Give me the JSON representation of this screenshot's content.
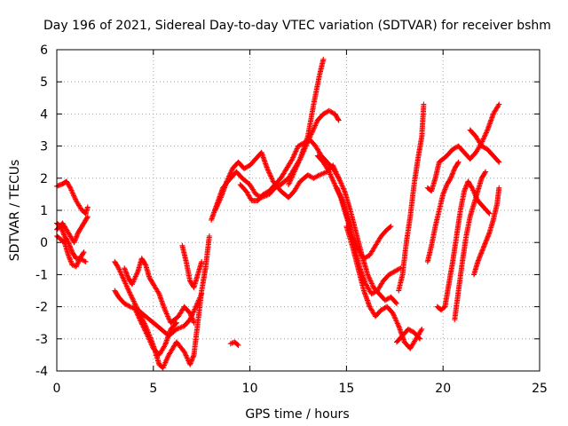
{
  "chart_data": {
    "type": "scatter",
    "title": "Day 196 of 2021, Sidereal Day-to-day VTEC variation (SDTVAR) for receiver bshm",
    "xlabel": "GPS time / hours",
    "ylabel": "SDTVAR / TECUs",
    "xlim": [
      0,
      25
    ],
    "ylim": [
      -4,
      6
    ],
    "xticks": [
      0,
      5,
      10,
      15,
      20,
      25
    ],
    "yticks": [
      -4,
      -3,
      -2,
      -1,
      0,
      1,
      2,
      3,
      4,
      5,
      6
    ],
    "grid": true,
    "marker": "plus",
    "color": "#ff0000",
    "segments": [
      [
        [
          0.0,
          1.75
        ],
        [
          0.3,
          1.82
        ],
        [
          0.5,
          1.9
        ],
        [
          0.7,
          1.7
        ],
        [
          1.0,
          1.3
        ],
        [
          1.3,
          1.0
        ],
        [
          1.5,
          0.9
        ],
        [
          1.6,
          1.1
        ]
      ],
      [
        [
          0.0,
          0.6
        ],
        [
          0.2,
          0.5
        ],
        [
          0.4,
          0.2
        ],
        [
          0.6,
          0.0
        ],
        [
          0.8,
          -0.3
        ],
        [
          1.0,
          -0.5
        ],
        [
          1.2,
          -0.5
        ],
        [
          1.5,
          -0.6
        ]
      ],
      [
        [
          0.0,
          0.2
        ],
        [
          0.2,
          0.1
        ],
        [
          0.4,
          0.0
        ],
        [
          0.6,
          -0.4
        ],
        [
          0.8,
          -0.7
        ],
        [
          1.0,
          -0.75
        ],
        [
          1.2,
          -0.5
        ],
        [
          1.4,
          -0.3
        ]
      ],
      [
        [
          0.0,
          0.4
        ],
        [
          0.3,
          0.6
        ],
        [
          0.6,
          0.3
        ],
        [
          0.9,
          0.0
        ],
        [
          1.1,
          0.3
        ],
        [
          1.3,
          0.5
        ],
        [
          1.5,
          0.7
        ],
        [
          1.6,
          0.8
        ]
      ],
      [
        [
          3.0,
          -0.6
        ],
        [
          3.2,
          -0.8
        ],
        [
          3.5,
          -1.2
        ],
        [
          3.8,
          -1.6
        ],
        [
          4.2,
          -2.1
        ],
        [
          4.6,
          -2.6
        ],
        [
          5.0,
          -3.2
        ],
        [
          5.3,
          -3.8
        ],
        [
          5.5,
          -3.9
        ],
        [
          5.8,
          -3.5
        ],
        [
          6.2,
          -3.1
        ],
        [
          6.6,
          -3.4
        ],
        [
          6.9,
          -3.8
        ],
        [
          7.1,
          -3.5
        ],
        [
          7.3,
          -2.5
        ],
        [
          7.5,
          -1.5
        ],
        [
          7.7,
          -0.8
        ],
        [
          7.9,
          0.2
        ]
      ],
      [
        [
          3.0,
          -1.5
        ],
        [
          3.2,
          -1.7
        ],
        [
          3.5,
          -1.9
        ],
        [
          3.8,
          -2.0
        ],
        [
          4.2,
          -2.1
        ],
        [
          4.6,
          -2.3
        ],
        [
          5.0,
          -2.5
        ],
        [
          5.4,
          -2.7
        ],
        [
          5.8,
          -2.9
        ],
        [
          6.2,
          -2.7
        ],
        [
          6.6,
          -2.6
        ],
        [
          6.9,
          -2.4
        ],
        [
          7.2,
          -2.0
        ],
        [
          7.5,
          -1.6
        ]
      ],
      [
        [
          3.5,
          -0.8
        ],
        [
          3.7,
          -1.1
        ],
        [
          3.9,
          -1.3
        ],
        [
          4.2,
          -0.9
        ],
        [
          4.4,
          -0.5
        ],
        [
          4.6,
          -0.7
        ],
        [
          4.8,
          -1.1
        ],
        [
          5.0,
          -1.3
        ],
        [
          5.3,
          -1.6
        ],
        [
          5.6,
          -2.1
        ],
        [
          5.9,
          -2.5
        ],
        [
          6.3,
          -2.3
        ],
        [
          6.6,
          -2.0
        ],
        [
          6.9,
          -2.2
        ],
        [
          7.1,
          -2.5
        ]
      ],
      [
        [
          6.5,
          -0.1
        ],
        [
          6.7,
          -0.6
        ],
        [
          6.9,
          -1.2
        ],
        [
          7.1,
          -1.4
        ],
        [
          7.3,
          -1.0
        ],
        [
          7.5,
          -0.6
        ]
      ],
      [
        [
          4.0,
          -2.0
        ],
        [
          4.3,
          -2.4
        ],
        [
          4.7,
          -2.9
        ],
        [
          5.0,
          -3.3
        ],
        [
          5.3,
          -3.5
        ],
        [
          5.6,
          -3.2
        ],
        [
          5.9,
          -2.7
        ],
        [
          6.2,
          -2.5
        ]
      ],
      [
        [
          9.0,
          -3.15
        ],
        [
          9.2,
          -3.1
        ],
        [
          9.4,
          -3.2
        ]
      ],
      [
        [
          8.0,
          0.7
        ],
        [
          8.3,
          1.2
        ],
        [
          8.6,
          1.7
        ],
        [
          9.0,
          2.0
        ],
        [
          9.3,
          2.2
        ],
        [
          9.6,
          2.0
        ],
        [
          10.0,
          1.8
        ],
        [
          10.3,
          1.5
        ],
        [
          10.6,
          1.4
        ],
        [
          11.0,
          1.5
        ],
        [
          11.3,
          1.7
        ],
        [
          11.6,
          1.8
        ],
        [
          12.0,
          2.0
        ],
        [
          12.3,
          2.3
        ],
        [
          12.6,
          2.6
        ],
        [
          13.0,
          3.3
        ],
        [
          13.3,
          4.3
        ],
        [
          13.6,
          5.2
        ],
        [
          13.8,
          5.7
        ]
      ],
      [
        [
          8.2,
          1.0
        ],
        [
          8.5,
          1.4
        ],
        [
          8.8,
          1.9
        ],
        [
          9.1,
          2.3
        ],
        [
          9.4,
          2.5
        ],
        [
          9.7,
          2.3
        ],
        [
          10.0,
          2.4
        ],
        [
          10.3,
          2.6
        ],
        [
          10.6,
          2.8
        ],
        [
          10.9,
          2.3
        ],
        [
          11.2,
          1.9
        ],
        [
          11.6,
          1.6
        ],
        [
          12.0,
          1.4
        ],
        [
          12.3,
          1.6
        ],
        [
          12.6,
          1.9
        ],
        [
          13.0,
          2.1
        ],
        [
          13.3,
          2.0
        ],
        [
          13.6,
          2.1
        ],
        [
          14.0,
          2.2
        ],
        [
          14.3,
          2.4
        ],
        [
          14.6,
          2.0
        ]
      ],
      [
        [
          9.5,
          1.8
        ],
        [
          9.8,
          1.6
        ],
        [
          10.1,
          1.3
        ],
        [
          10.4,
          1.3
        ],
        [
          10.7,
          1.5
        ],
        [
          11.0,
          1.6
        ],
        [
          11.3,
          1.8
        ],
        [
          11.6,
          2.0
        ],
        [
          11.9,
          2.3
        ],
        [
          12.2,
          2.6
        ],
        [
          12.5,
          3.0
        ],
        [
          12.8,
          3.1
        ],
        [
          13.1,
          3.2
        ],
        [
          13.4,
          3.0
        ],
        [
          13.7,
          2.7
        ],
        [
          14.0,
          2.5
        ],
        [
          14.3,
          2.3
        ],
        [
          14.6,
          2.0
        ],
        [
          14.9,
          1.6
        ],
        [
          15.2,
          1.0
        ],
        [
          15.5,
          0.3
        ],
        [
          15.8,
          -0.4
        ],
        [
          16.1,
          -1.0
        ],
        [
          16.4,
          -1.4
        ],
        [
          16.7,
          -1.6
        ],
        [
          17.0,
          -1.8
        ],
        [
          17.3,
          -1.7
        ],
        [
          17.6,
          -1.9
        ]
      ],
      [
        [
          12.0,
          1.8
        ],
        [
          12.3,
          2.2
        ],
        [
          12.6,
          2.6
        ],
        [
          12.9,
          3.0
        ],
        [
          13.2,
          3.4
        ],
        [
          13.5,
          3.8
        ],
        [
          13.8,
          4.0
        ],
        [
          14.1,
          4.1
        ],
        [
          14.4,
          4.0
        ],
        [
          14.6,
          3.8
        ]
      ],
      [
        [
          13.5,
          2.7
        ],
        [
          13.8,
          2.5
        ],
        [
          14.1,
          2.2
        ],
        [
          14.4,
          1.8
        ],
        [
          14.7,
          1.4
        ],
        [
          15.0,
          0.8
        ],
        [
          15.3,
          0.2
        ],
        [
          15.6,
          -0.2
        ],
        [
          15.9,
          -0.5
        ],
        [
          16.2,
          -0.4
        ],
        [
          16.5,
          -0.1
        ],
        [
          16.8,
          0.2
        ],
        [
          17.1,
          0.4
        ],
        [
          17.3,
          0.5
        ]
      ],
      [
        [
          14.5,
          1.7
        ],
        [
          14.8,
          1.3
        ],
        [
          15.1,
          0.7
        ],
        [
          15.4,
          -0.1
        ],
        [
          15.7,
          -0.8
        ],
        [
          16.0,
          -1.3
        ],
        [
          16.3,
          -1.6
        ],
        [
          16.6,
          -1.5
        ],
        [
          16.9,
          -1.2
        ],
        [
          17.2,
          -1.0
        ],
        [
          17.5,
          -0.9
        ],
        [
          17.8,
          -0.8
        ]
      ],
      [
        [
          15.0,
          0.5
        ],
        [
          15.3,
          -0.1
        ],
        [
          15.6,
          -0.8
        ],
        [
          15.9,
          -1.5
        ],
        [
          16.2,
          -2.0
        ],
        [
          16.5,
          -2.3
        ],
        [
          16.8,
          -2.1
        ],
        [
          17.1,
          -2.0
        ],
        [
          17.4,
          -2.2
        ],
        [
          17.7,
          -2.6
        ],
        [
          18.0,
          -3.1
        ],
        [
          18.3,
          -3.3
        ],
        [
          18.6,
          -3.0
        ],
        [
          18.9,
          -2.7
        ]
      ],
      [
        [
          17.7,
          -1.5
        ],
        [
          17.9,
          -1.0
        ],
        [
          18.1,
          0.0
        ],
        [
          18.3,
          0.8
        ],
        [
          18.5,
          1.8
        ],
        [
          18.7,
          2.6
        ],
        [
          18.9,
          3.3
        ],
        [
          19.0,
          4.3
        ]
      ],
      [
        [
          17.6,
          -3.1
        ],
        [
          17.9,
          -2.9
        ],
        [
          18.2,
          -2.7
        ],
        [
          18.5,
          -2.8
        ],
        [
          18.8,
          -3.0
        ]
      ],
      [
        [
          19.2,
          1.7
        ],
        [
          19.4,
          1.6
        ],
        [
          19.6,
          2.0
        ],
        [
          19.8,
          2.5
        ],
        [
          20.0,
          2.6
        ],
        [
          20.2,
          2.7
        ],
        [
          20.5,
          2.9
        ],
        [
          20.8,
          3.0
        ],
        [
          21.1,
          2.8
        ],
        [
          21.4,
          2.6
        ],
        [
          21.7,
          2.8
        ],
        [
          22.0,
          3.1
        ],
        [
          22.3,
          3.5
        ],
        [
          22.6,
          4.0
        ],
        [
          22.9,
          4.3
        ]
      ],
      [
        [
          21.4,
          3.5
        ],
        [
          21.7,
          3.3
        ],
        [
          22.0,
          3.0
        ],
        [
          22.3,
          2.9
        ],
        [
          22.6,
          2.7
        ],
        [
          22.9,
          2.5
        ]
      ],
      [
        [
          19.7,
          -2.0
        ],
        [
          19.9,
          -2.1
        ],
        [
          20.1,
          -2.0
        ],
        [
          20.3,
          -1.3
        ],
        [
          20.5,
          -0.6
        ],
        [
          20.7,
          0.2
        ],
        [
          20.9,
          1.0
        ],
        [
          21.1,
          1.6
        ],
        [
          21.3,
          1.9
        ],
        [
          21.5,
          1.7
        ],
        [
          21.8,
          1.3
        ],
        [
          22.1,
          1.1
        ],
        [
          22.4,
          0.9
        ]
      ],
      [
        [
          19.2,
          -0.6
        ],
        [
          19.4,
          -0.1
        ],
        [
          19.6,
          0.5
        ],
        [
          19.8,
          1.0
        ],
        [
          20.0,
          1.5
        ],
        [
          20.2,
          1.8
        ],
        [
          20.4,
          2.0
        ],
        [
          20.6,
          2.3
        ],
        [
          20.8,
          2.5
        ]
      ],
      [
        [
          20.6,
          -2.4
        ],
        [
          20.8,
          -1.5
        ],
        [
          21.0,
          -0.6
        ],
        [
          21.2,
          0.2
        ],
        [
          21.4,
          0.8
        ],
        [
          21.6,
          1.2
        ],
        [
          21.8,
          1.6
        ],
        [
          22.0,
          2.0
        ],
        [
          22.2,
          2.2
        ]
      ],
      [
        [
          21.6,
          -1.0
        ],
        [
          21.8,
          -0.6
        ],
        [
          22.0,
          -0.3
        ],
        [
          22.2,
          0.0
        ],
        [
          22.4,
          0.3
        ],
        [
          22.6,
          0.7
        ],
        [
          22.8,
          1.2
        ],
        [
          22.9,
          1.7
        ]
      ]
    ]
  }
}
